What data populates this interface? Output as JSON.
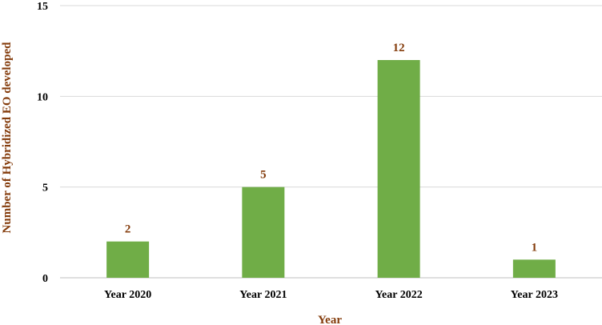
{
  "chart_data": {
    "type": "bar",
    "title": "",
    "xlabel": "Year",
    "ylabel": "Number of Hybridized EO developed",
    "categories": [
      "Year 2020",
      "Year 2021",
      "Year 2022",
      "Year 2023"
    ],
    "values": [
      2,
      5,
      12,
      1
    ],
    "ylim": [
      0,
      15
    ],
    "yticks": [
      0,
      5,
      10,
      15
    ],
    "grid": true,
    "legend": "none",
    "data_labels": true,
    "colors": {
      "bar": "#70ad47",
      "axis_title": "#843c0c",
      "data_label": "#843c0c",
      "gridline": "#d9d9d9"
    }
  }
}
